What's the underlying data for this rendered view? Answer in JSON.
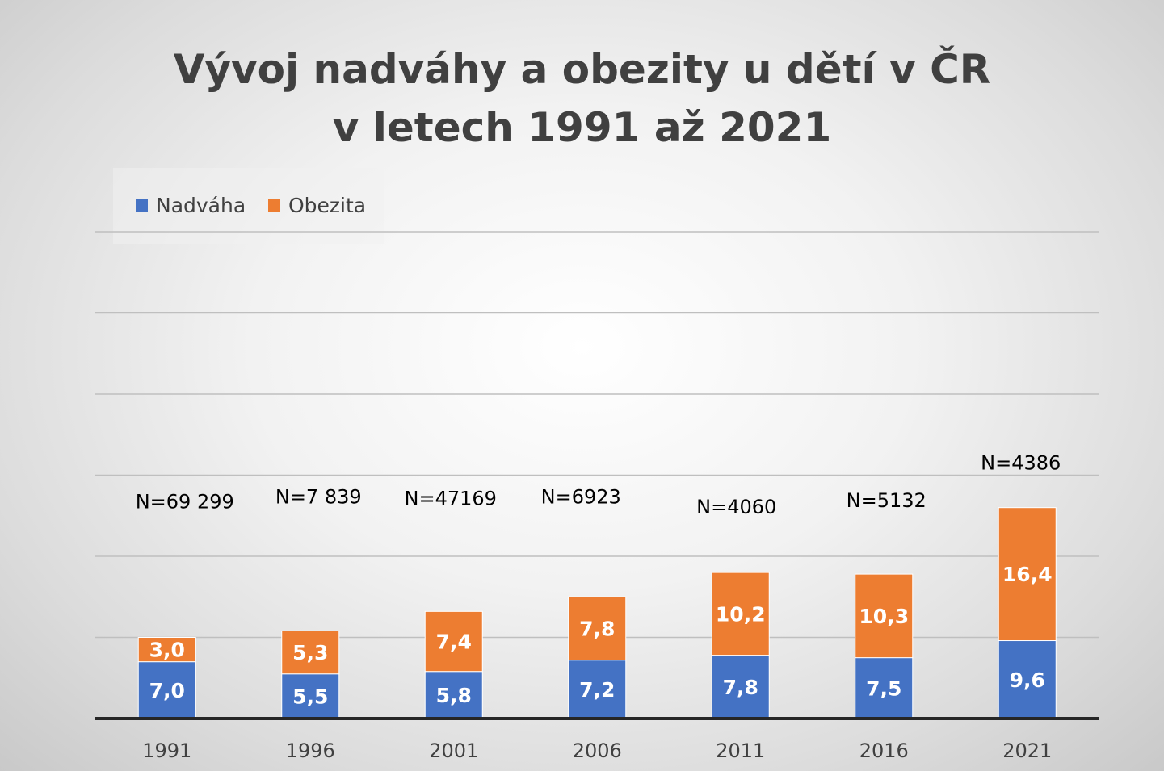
{
  "title_line1": "Vývoj nadváhy a obezity u dětí v ČR",
  "title_line2": "v letech 1991 až 2021",
  "legend": [
    {
      "name": "Nadváha",
      "color": "#4472c4"
    },
    {
      "name": "Obezita",
      "color": "#ed7d31"
    }
  ],
  "chart_data": {
    "type": "bar",
    "stacked": true,
    "title": "Vývoj nadváhy a obezity u dětí v ČR v letech 1991 až 2021",
    "categories": [
      "1991",
      "1996",
      "2001",
      "2006",
      "2011",
      "2016",
      "2021"
    ],
    "series": [
      {
        "name": "Nadváha",
        "color": "#4472c4",
        "values": [
          7.0,
          5.5,
          5.8,
          7.2,
          7.8,
          7.5,
          9.6
        ],
        "labels": [
          "7,0",
          "5,5",
          "5,8",
          "7,2",
          "7,8",
          "7,5",
          "9,6"
        ]
      },
      {
        "name": "Obezita",
        "color": "#ed7d31",
        "values": [
          3.0,
          5.3,
          7.4,
          7.8,
          10.2,
          10.3,
          16.4
        ],
        "labels": [
          "3,0",
          "5,3",
          "7,4",
          "7,8",
          "10,2",
          "10,3",
          "16,4"
        ]
      }
    ],
    "sample_sizes": [
      "N=69 299",
      "N=7 839",
      "N=47169",
      "N=6923",
      "N=4060",
      "N=5132",
      "N=4386"
    ],
    "ylim": [
      0,
      30
    ],
    "grid": true,
    "legend_position": "top-left",
    "xlabel": "",
    "ylabel": ""
  }
}
